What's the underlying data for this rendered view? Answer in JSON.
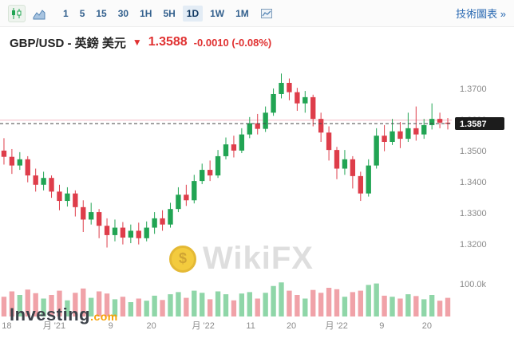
{
  "toolbar": {
    "timeframes": [
      "1",
      "5",
      "15",
      "30",
      "1H",
      "5H",
      "1D",
      "1W",
      "1M"
    ],
    "selected_timeframe": "1D",
    "tech_chart_link": "技術圖表 »"
  },
  "header": {
    "symbol": "GBP/USD - 英鎊 美元",
    "direction_icon": "▼",
    "price": "1.3588",
    "change": "-0.0010  (-0.08%)"
  },
  "watermark": {
    "coin_symbol": "$",
    "text": "WikiFX"
  },
  "logo": {
    "name": "Investing",
    "suffix": ".com"
  },
  "chart_data": {
    "type": "candlestick",
    "title": "GBP/USD 1D candlestick chart with volume",
    "legend_position": "none",
    "grid": false,
    "price_axis": {
      "min": 1.312,
      "max": 1.38,
      "ticks": [
        1.37,
        1.36,
        1.35,
        1.34,
        1.33,
        1.32
      ]
    },
    "current_price": 1.3587,
    "current_price_label": "1.3587",
    "ref_line_price": 1.3598,
    "volume_axis_label": "100.0k",
    "x_labels": [
      {
        "t": "18",
        "f": 0.004
      },
      {
        "t": "月 '21",
        "f": 0.12
      },
      {
        "t": "9",
        "f": 0.245
      },
      {
        "t": "20",
        "f": 0.335
      },
      {
        "t": "月 '22",
        "f": 0.45
      },
      {
        "t": "11",
        "f": 0.555
      },
      {
        "t": "20",
        "f": 0.645
      },
      {
        "t": "月 '22",
        "f": 0.745
      },
      {
        "t": "9",
        "f": 0.845
      },
      {
        "t": "20",
        "f": 0.945
      }
    ],
    "colors": {
      "up": "#21a453",
      "down": "#de3d4a",
      "vol_up": "#8fd6a8",
      "vol_down": "#f0a2a8"
    },
    "candles": [
      [
        1.35,
        1.354,
        1.3455,
        1.348,
        0.55
      ],
      [
        1.348,
        1.3505,
        1.3425,
        1.3452,
        0.7
      ],
      [
        1.3452,
        1.3495,
        1.3438,
        1.3472,
        0.6
      ],
      [
        1.3472,
        1.3482,
        1.3398,
        1.342,
        0.75
      ],
      [
        1.342,
        1.3442,
        1.3368,
        1.339,
        0.65
      ],
      [
        1.339,
        1.3432,
        1.3372,
        1.3412,
        0.5
      ],
      [
        1.3412,
        1.342,
        1.3348,
        1.3368,
        0.6
      ],
      [
        1.3368,
        1.339,
        1.3308,
        1.3338,
        0.72
      ],
      [
        1.3338,
        1.3382,
        1.332,
        1.3362,
        0.45
      ],
      [
        1.3362,
        1.3372,
        1.3288,
        1.3318,
        0.66
      ],
      [
        1.3318,
        1.334,
        1.3238,
        1.3278,
        0.78
      ],
      [
        1.3278,
        1.3332,
        1.3262,
        1.3302,
        0.52
      ],
      [
        1.3302,
        1.3312,
        1.3218,
        1.3258,
        0.7
      ],
      [
        1.3258,
        1.3282,
        1.3188,
        1.3228,
        0.64
      ],
      [
        1.3228,
        1.3278,
        1.3208,
        1.3252,
        0.48
      ],
      [
        1.3252,
        1.327,
        1.3198,
        1.322,
        0.55
      ],
      [
        1.322,
        1.3262,
        1.3202,
        1.3242,
        0.4
      ],
      [
        1.3242,
        1.3268,
        1.3198,
        1.3218,
        0.5
      ],
      [
        1.3218,
        1.3272,
        1.3208,
        1.3252,
        0.44
      ],
      [
        1.3252,
        1.3302,
        1.3232,
        1.3282,
        0.58
      ],
      [
        1.3282,
        1.3308,
        1.3242,
        1.3262,
        0.46
      ],
      [
        1.3262,
        1.3332,
        1.3252,
        1.3312,
        0.62
      ],
      [
        1.3312,
        1.3382,
        1.3302,
        1.3358,
        0.68
      ],
      [
        1.3358,
        1.339,
        1.3322,
        1.334,
        0.52
      ],
      [
        1.334,
        1.3422,
        1.333,
        1.3402,
        0.72
      ],
      [
        1.3402,
        1.3458,
        1.3392,
        1.3438,
        0.66
      ],
      [
        1.3438,
        1.3468,
        1.3402,
        1.342,
        0.48
      ],
      [
        1.342,
        1.3502,
        1.3412,
        1.3482,
        0.7
      ],
      [
        1.3482,
        1.3542,
        1.3472,
        1.352,
        0.62
      ],
      [
        1.352,
        1.3548,
        1.3478,
        1.35,
        0.45
      ],
      [
        1.35,
        1.3572,
        1.3492,
        1.3552,
        0.64
      ],
      [
        1.3552,
        1.3608,
        1.354,
        1.3588,
        0.68
      ],
      [
        1.3588,
        1.3618,
        1.3552,
        1.357,
        0.5
      ],
      [
        1.357,
        1.3642,
        1.356,
        1.3622,
        0.66
      ],
      [
        1.3622,
        1.37,
        1.3612,
        1.3682,
        0.85
      ],
      [
        1.3682,
        1.3748,
        1.3668,
        1.3718,
        0.95
      ],
      [
        1.3718,
        1.3732,
        1.3662,
        1.3688,
        0.72
      ],
      [
        1.3688,
        1.3702,
        1.3628,
        1.3652,
        0.6
      ],
      [
        1.3652,
        1.3692,
        1.3622,
        1.3672,
        0.5
      ],
      [
        1.3672,
        1.368,
        1.3578,
        1.3602,
        0.74
      ],
      [
        1.3602,
        1.3622,
        1.3528,
        1.3558,
        0.66
      ],
      [
        1.3558,
        1.3578,
        1.3468,
        1.3502,
        0.8
      ],
      [
        1.3502,
        1.3512,
        1.3408,
        1.3442,
        0.76
      ],
      [
        1.3442,
        1.3502,
        1.3422,
        1.3472,
        0.55
      ],
      [
        1.3472,
        1.3482,
        1.3378,
        1.3418,
        0.68
      ],
      [
        1.3418,
        1.3432,
        1.3338,
        1.3362,
        0.72
      ],
      [
        1.3362,
        1.3472,
        1.3352,
        1.3452,
        0.88
      ],
      [
        1.3452,
        1.3572,
        1.3442,
        1.3548,
        0.92
      ],
      [
        1.3548,
        1.3582,
        1.3498,
        1.3528,
        0.58
      ],
      [
        1.3528,
        1.3602,
        1.3518,
        1.3562,
        0.55
      ],
      [
        1.3562,
        1.3592,
        1.3508,
        1.3538,
        0.5
      ],
      [
        1.3538,
        1.3622,
        1.3528,
        1.3572,
        0.62
      ],
      [
        1.3572,
        1.3642,
        1.3532,
        1.3552,
        0.57
      ],
      [
        1.3552,
        1.3602,
        1.3538,
        1.3582,
        0.48
      ],
      [
        1.3582,
        1.3652,
        1.3568,
        1.3602,
        0.6
      ],
      [
        1.3602,
        1.3622,
        1.3572,
        1.359,
        0.44
      ],
      [
        1.359,
        1.3605,
        1.3568,
        1.3588,
        0.52
      ]
    ]
  }
}
